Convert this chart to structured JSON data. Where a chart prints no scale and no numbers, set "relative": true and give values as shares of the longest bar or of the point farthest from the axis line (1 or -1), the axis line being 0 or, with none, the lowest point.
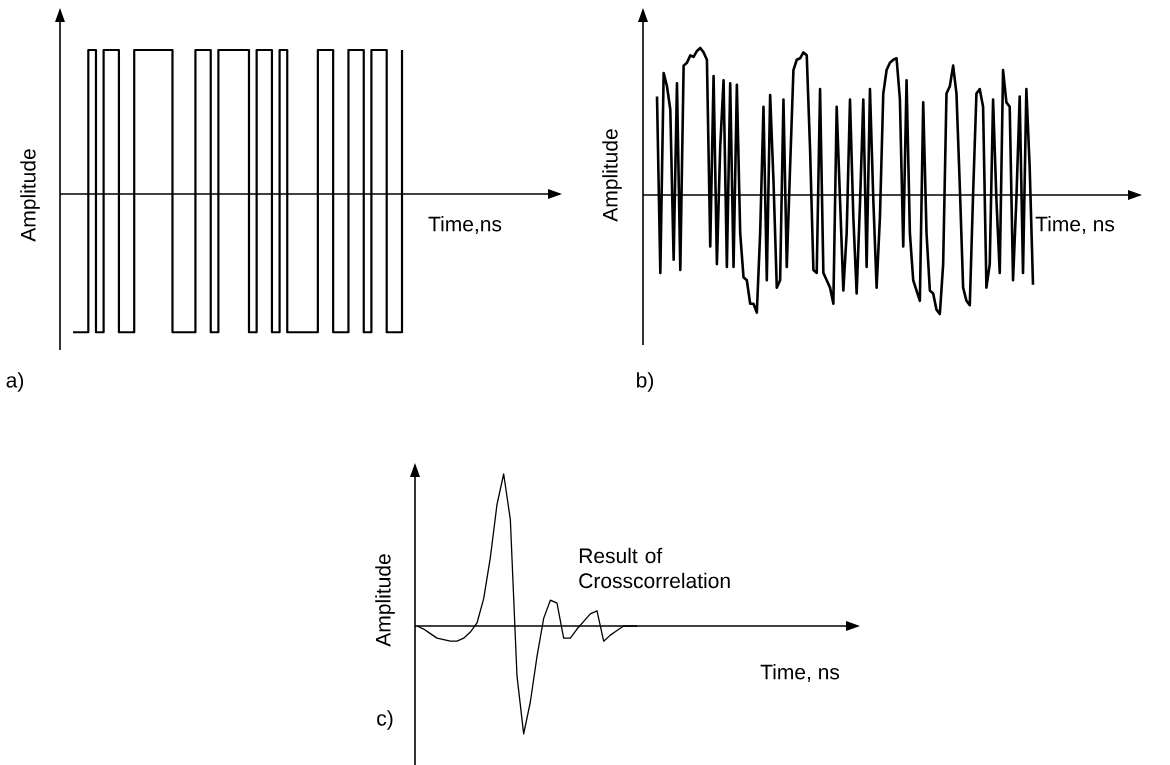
{
  "chart_data": [
    {
      "type": "step",
      "title": "a)",
      "xlabel": "Time,ns",
      "ylabel": "Amplitude",
      "relative": true,
      "categories": [
        null,
        null,
        null,
        null,
        null,
        null,
        null,
        null,
        null,
        null,
        null,
        null,
        null,
        null,
        null,
        null,
        null,
        null,
        null,
        null,
        null,
        null,
        null,
        null,
        null,
        null,
        null,
        null,
        null,
        null,
        null,
        null,
        null,
        null,
        null,
        null,
        null,
        null,
        null,
        null,
        null,
        null,
        null,
        null
      ],
      "series": [
        {
          "color": "#000000",
          "values": [
            -0.96,
            -0.96,
            1,
            -0.96,
            1,
            1,
            -0.96,
            -0.96,
            1,
            1,
            1,
            1,
            1,
            -0.96,
            -0.96,
            -0.96,
            1,
            1,
            -0.96,
            1,
            1,
            1,
            1,
            -0.96,
            1,
            1,
            -0.96,
            1,
            -0.96,
            -0.96,
            -0.96,
            -0.96,
            1,
            1,
            -0.96,
            -0.96,
            1,
            1,
            -0.96,
            1,
            1,
            -0.96,
            -0.96,
            1
          ]
        }
      ]
    },
    {
      "type": "line",
      "title": "b)",
      "xlabel": "Time, ns",
      "ylabel": "Amplitude",
      "relative": true,
      "categories": [
        null,
        null,
        null,
        null,
        null,
        null,
        null,
        null,
        null,
        null,
        null,
        null,
        null,
        null,
        null,
        null,
        null,
        null,
        null,
        null,
        null,
        null,
        null,
        null,
        null,
        null,
        null,
        null,
        null,
        null,
        null,
        null,
        null,
        null,
        null,
        null,
        null,
        null,
        null,
        null,
        null,
        null,
        null,
        null,
        null,
        null,
        null,
        null,
        null,
        null,
        null,
        null,
        null,
        null,
        null,
        null,
        null,
        null,
        null,
        null,
        null,
        null,
        null,
        null,
        null,
        null,
        null,
        null,
        null,
        null,
        null,
        null,
        null,
        null,
        null,
        null,
        null,
        null,
        null,
        null,
        null,
        null,
        null,
        null,
        null,
        null,
        null,
        null,
        null,
        null,
        null,
        null,
        null,
        null,
        null,
        null,
        null,
        null,
        null,
        null,
        null,
        null,
        null,
        null,
        null,
        null,
        null,
        null,
        null,
        null,
        null,
        null,
        null,
        null
      ],
      "series": [
        {
          "color": "#000000",
          "values": [
            0.67,
            -0.53,
            0.83,
            0.74,
            0.58,
            -0.44,
            0.76,
            -0.51,
            0.88,
            0.9,
            0.95,
            0.94,
            0.98,
            1.0,
            0.97,
            0.92,
            -0.35,
            0.81,
            -0.47,
            0.33,
            0.78,
            -0.49,
            0.76,
            -0.49,
            0.75,
            -0.26,
            -0.56,
            -0.58,
            -0.74,
            -0.74,
            -0.8,
            -0.26,
            0.6,
            -0.58,
            0.68,
            0.1,
            -0.63,
            -0.58,
            0.65,
            -0.49,
            0.19,
            0.85,
            0.92,
            0.93,
            0.97,
            0.95,
            0.31,
            -0.51,
            -0.53,
            0.72,
            -0.53,
            -0.58,
            -0.63,
            -0.74,
            0.6,
            -0.03,
            -0.65,
            -0.26,
            0.65,
            -0.15,
            -0.67,
            -0.06,
            0.65,
            -0.49,
            0.72,
            -0.03,
            -0.63,
            -0.15,
            0.69,
            0.85,
            0.9,
            0.92,
            0.93,
            0.65,
            -0.35,
            0.78,
            -0.26,
            -0.58,
            -0.65,
            -0.72,
            0.63,
            -0.26,
            -0.65,
            -0.67,
            -0.78,
            -0.81,
            -0.47,
            0.69,
            0.74,
            0.88,
            0.69,
            0.06,
            -0.63,
            -0.72,
            -0.75,
            0.01,
            0.69,
            0.72,
            0.6,
            -0.63,
            -0.47,
            0.65,
            -0.03,
            -0.53,
            0.85,
            0.63,
            0.6,
            -0.58,
            -0.03,
            0.67,
            -0.53,
            0.72,
            0.19,
            -0.61
          ]
        }
      ]
    },
    {
      "type": "line",
      "title": "c)",
      "xlabel": "Time, ns",
      "ylabel": "Amplitude",
      "relative": true,
      "annotations": [
        "Result of Crosscorrelation"
      ],
      "categories": [
        null,
        null,
        null,
        null,
        null,
        null,
        null,
        null,
        null,
        null,
        null,
        null,
        null,
        null,
        null,
        null,
        null,
        null,
        null,
        null,
        null,
        null,
        null,
        null,
        null,
        null,
        null,
        null,
        null,
        null,
        null,
        null,
        null,
        null
      ],
      "series": [
        {
          "color": "#000000",
          "values": [
            0,
            -0.02,
            -0.05,
            -0.08,
            -0.09,
            -0.1,
            -0.1,
            -0.08,
            -0.04,
            0.02,
            0.18,
            0.45,
            0.8,
            1.0,
            0.7,
            -0.33,
            -0.71,
            -0.5,
            -0.2,
            0.05,
            0.17,
            0.15,
            -0.08,
            -0.08,
            -0.02,
            0.03,
            0.08,
            0.1,
            -0.1,
            -0.06,
            -0.03,
            0,
            0,
            0
          ]
        }
      ]
    }
  ]
}
